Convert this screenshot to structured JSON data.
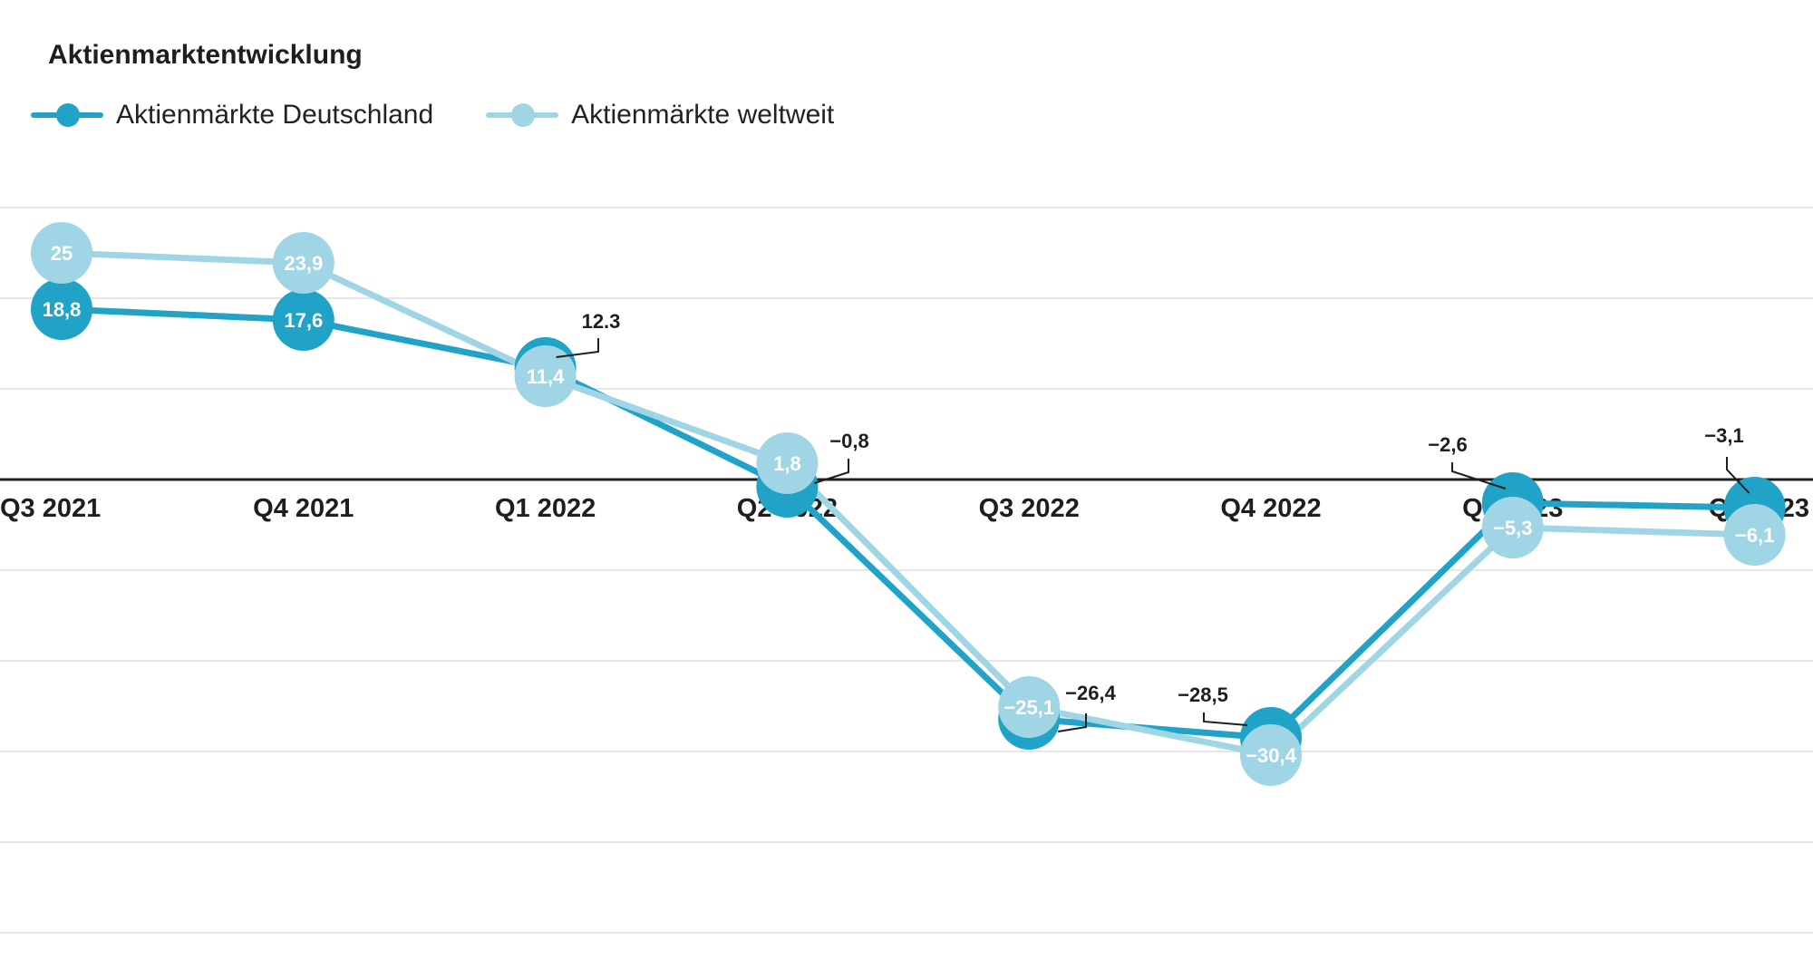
{
  "chart_data": {
    "type": "line",
    "title": "Aktienmarktentwicklung",
    "categories": [
      "Q3 2021",
      "Q4 2021",
      "Q1 2022",
      "Q2 2022",
      "Q3 2022",
      "Q4 2022",
      "Q1 2023",
      "Q2 2023"
    ],
    "series": [
      {
        "name": "Aktienmärkte Deutschland",
        "color": "#21a3c8",
        "values": [
          18.8,
          17.6,
          12.3,
          -0.8,
          -26.4,
          -28.5,
          -2.6,
          -3.1
        ],
        "labels": [
          "18,8",
          "17,6",
          "12.3",
          "−0,8",
          "−26,4",
          "−28,5",
          "−2,6",
          "−3,1"
        ]
      },
      {
        "name": "Aktienmärkte weltweit",
        "color": "#9fd5e4",
        "values": [
          25,
          23.9,
          11.4,
          1.8,
          -25.1,
          -30.4,
          -5.3,
          -6.1
        ],
        "labels": [
          "25",
          "23,9",
          "11,4",
          "1,8",
          "−25,1",
          "−30,4",
          "−5,3",
          "−6,1"
        ]
      }
    ],
    "ylim": [
      -50,
      30
    ],
    "grid": true,
    "legend": "top-left"
  }
}
